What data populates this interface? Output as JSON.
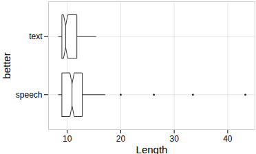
{
  "chart_data": {
    "type": "boxplot",
    "orientation": "horizontal",
    "x_label": "Length",
    "y_label": "better",
    "categories": [
      "text",
      "speech"
    ],
    "boxes": [
      {
        "whisker_low": 8.3,
        "q1": 9.0,
        "notch_low": 9.3,
        "median": 9.7,
        "notch_high": 10.1,
        "q3": 11.8,
        "whisker_high": 15.4,
        "outliers": []
      },
      {
        "whisker_low": 8.3,
        "q1": 9.0,
        "notch_low": 10.5,
        "median": 10.9,
        "notch_high": 11.3,
        "q3": 12.8,
        "whisker_high": 17.1,
        "outliers": [
          20.0,
          26.2,
          33.5,
          43.3
        ]
      }
    ],
    "xlim": [
      6.5,
      45.1
    ],
    "xticks": [
      10,
      20,
      30,
      40
    ],
    "grid": true
  }
}
